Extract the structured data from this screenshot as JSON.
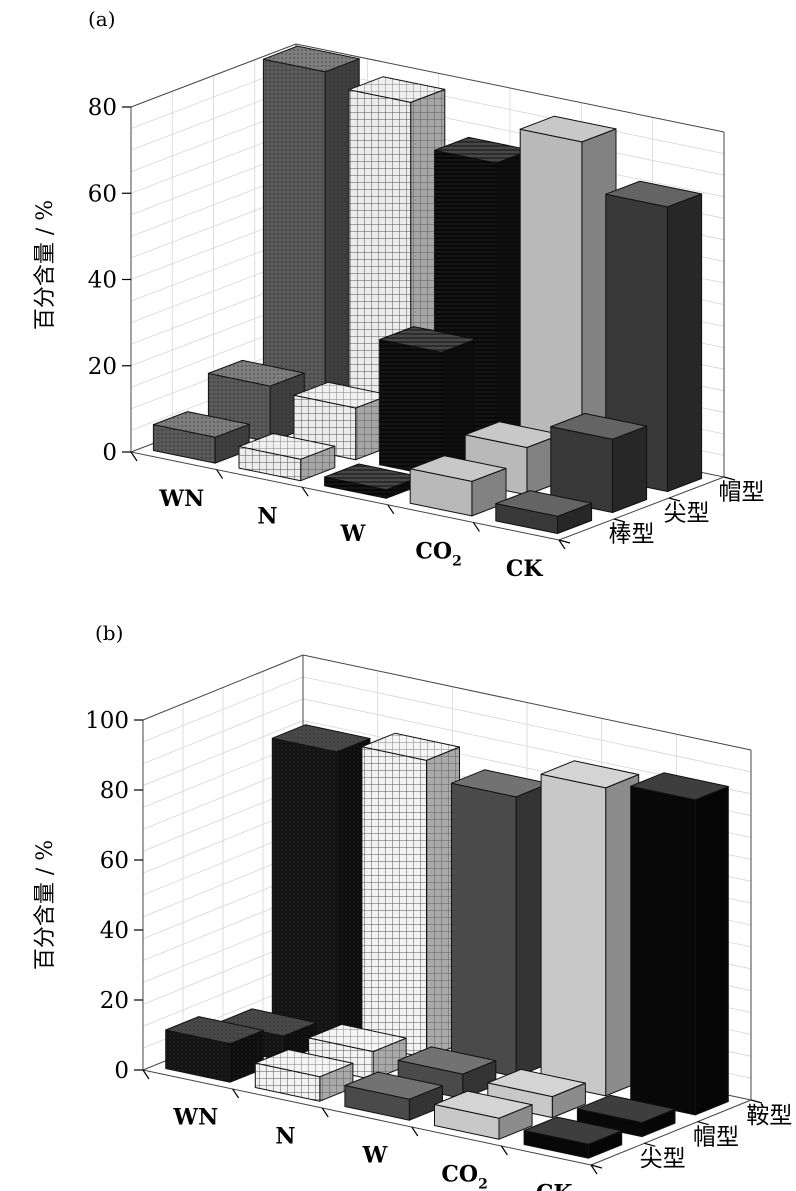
{
  "chart_data": [
    {
      "type": "bar3d",
      "panel_label": "(a)",
      "ylabel": "百分含量 / %",
      "ylim": [
        0,
        80
      ],
      "yticks": [
        0,
        20,
        40,
        60,
        80
      ],
      "categories": [
        "WN",
        "N",
        "W",
        "CO2",
        "CK"
      ],
      "category_labels": [
        {
          "main": "WN",
          "sub": ""
        },
        {
          "main": "N",
          "sub": ""
        },
        {
          "main": "W",
          "sub": ""
        },
        {
          "main": "CO",
          "sub": "2"
        },
        {
          "main": "CK",
          "sub": ""
        }
      ],
      "series": [
        {
          "name": "棒型",
          "values": [
            6,
            5,
            2,
            8,
            4
          ]
        },
        {
          "name": "尖型",
          "values": [
            13,
            12,
            29,
            11,
            17
          ]
        },
        {
          "name": "帽型",
          "values": [
            81,
            78,
            68,
            77,
            66
          ]
        }
      ],
      "fills": [
        "#5a5a5a",
        "#ececec",
        "#151515",
        "#b9b9b9",
        "#383838"
      ],
      "patterns": [
        "dots",
        "grid",
        "hatch",
        "none",
        "none"
      ]
    },
    {
      "type": "bar3d",
      "panel_label": "(b)",
      "ylabel": "百分含量 / %",
      "ylim": [
        0,
        100
      ],
      "yticks": [
        0,
        20,
        40,
        60,
        80,
        100
      ],
      "categories": [
        "WN",
        "N",
        "W",
        "CO2",
        "CK"
      ],
      "category_labels": [
        {
          "main": "WN",
          "sub": ""
        },
        {
          "main": "N",
          "sub": ""
        },
        {
          "main": "W",
          "sub": ""
        },
        {
          "main": "CO",
          "sub": "2"
        },
        {
          "main": "CK",
          "sub": ""
        }
      ],
      "series": [
        {
          "name": "尖型",
          "values": [
            11,
            7,
            6,
            6,
            4
          ]
        },
        {
          "name": "帽型",
          "values": [
            7,
            8,
            7,
            6,
            4
          ]
        },
        {
          "name": "鞍型",
          "values": [
            82,
            85,
            80,
            88,
            90
          ]
        }
      ],
      "fills": [
        "#141414",
        "#f2f2f2",
        "#4a4a4a",
        "#c8c8c8",
        "#080808"
      ],
      "patterns": [
        "dots",
        "grid",
        "none",
        "none",
        "none"
      ]
    }
  ]
}
